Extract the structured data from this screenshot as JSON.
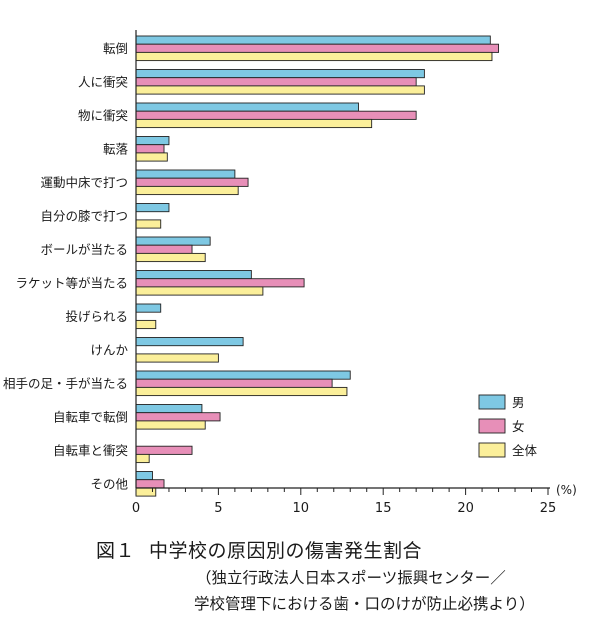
{
  "chart_data": {
    "type": "bar",
    "orientation": "horizontal",
    "categories": [
      "転倒",
      "人に衝突",
      "物に衝突",
      "転落",
      "運動中床で打つ",
      "自分の膝で打つ",
      "ボールが当たる",
      "ラケット等が当たる",
      "投げられる",
      "けんか",
      "相手の足・手が当たる",
      "自転車で転倒",
      "自転車と衝突",
      "その他"
    ],
    "series": [
      {
        "name": "男",
        "color": "#7ec8e3",
        "values": [
          21.5,
          17.5,
          13.5,
          2.0,
          6.0,
          2.0,
          4.5,
          7.0,
          1.5,
          6.5,
          13.0,
          4.0,
          0,
          1.0
        ]
      },
      {
        "name": "女",
        "color": "#e78fb8",
        "values": [
          22.0,
          17.0,
          17.0,
          1.7,
          6.8,
          0,
          3.4,
          10.2,
          0,
          0,
          11.9,
          5.1,
          3.4,
          1.7
        ]
      },
      {
        "name": "全体",
        "color": "#fbef9a",
        "values": [
          21.6,
          17.5,
          14.3,
          1.9,
          6.2,
          1.5,
          4.2,
          7.7,
          1.2,
          5.0,
          12.8,
          4.2,
          0.8,
          1.2
        ]
      }
    ],
    "xlim": [
      0,
      25
    ],
    "xticks": [
      "0",
      "5",
      "10",
      "15",
      "20",
      "25"
    ],
    "x_unit": "(%)",
    "legend_position": "right"
  },
  "caption": {
    "figure_number": "図１",
    "title": "中学校の原因別の傷害発生割合",
    "source_line1": "（独立行政法人日本スポーツ振興センター／",
    "source_line2": "学校管理下における歯・口のけが防止必携より）"
  }
}
